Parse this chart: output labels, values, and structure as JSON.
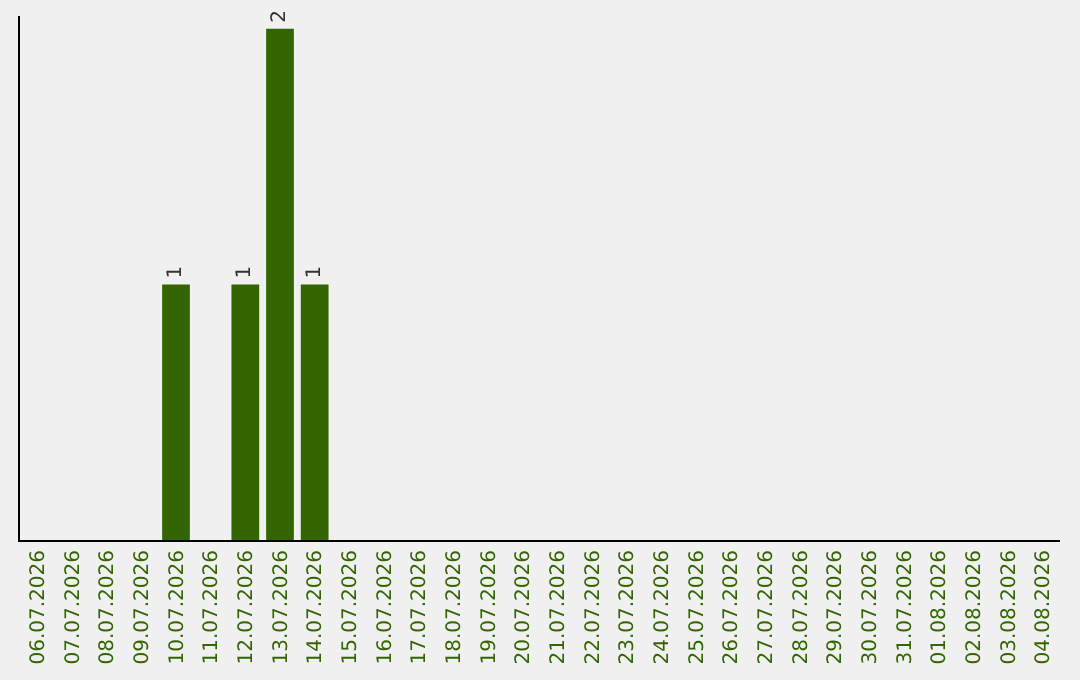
{
  "chart_data": {
    "type": "bar",
    "categories": [
      "06.07.2026",
      "07.07.2026",
      "08.07.2026",
      "09.07.2026",
      "10.07.2026",
      "11.07.2026",
      "12.07.2026",
      "13.07.2026",
      "14.07.2026",
      "15.07.2026",
      "16.07.2026",
      "17.07.2026",
      "18.07.2026",
      "19.07.2026",
      "20.07.2026",
      "21.07.2026",
      "22.07.2026",
      "23.07.2026",
      "24.07.2026",
      "25.07.2026",
      "26.07.2026",
      "27.07.2026",
      "28.07.2026",
      "29.07.2026",
      "30.07.2026",
      "31.07.2026",
      "01.08.2026",
      "02.08.2026",
      "03.08.2026",
      "04.08.2026"
    ],
    "values": [
      0,
      0,
      0,
      0,
      1,
      0,
      1,
      2,
      1,
      0,
      0,
      0,
      0,
      0,
      0,
      0,
      0,
      0,
      0,
      0,
      0,
      0,
      0,
      0,
      0,
      0,
      0,
      0,
      0,
      0
    ],
    "value_labels": [
      null,
      null,
      null,
      null,
      "1",
      null,
      "1",
      "2",
      "1",
      null,
      null,
      null,
      null,
      null,
      null,
      null,
      null,
      null,
      null,
      null,
      null,
      null,
      null,
      null,
      null,
      null,
      null,
      null,
      null,
      null
    ],
    "color": "#336600",
    "ylim": [
      0,
      2.05
    ],
    "grid": false,
    "legend": false
  }
}
